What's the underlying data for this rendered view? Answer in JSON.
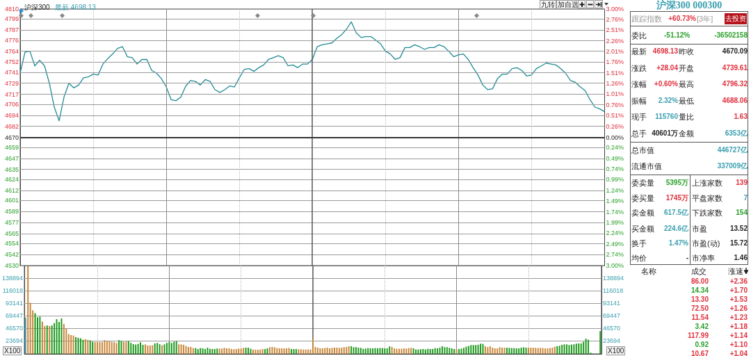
{
  "chart_data": [
    {
      "type": "line",
      "title": "沪深300",
      "subtitle": "最新 4698.13",
      "annotations": [
        "九转",
        "加自选"
      ],
      "categories": [
        null,
        null,
        null,
        null,
        null,
        null,
        null,
        null,
        null,
        null,
        null,
        null,
        null,
        null,
        null,
        null,
        null,
        null,
        null,
        null,
        null,
        null,
        null,
        null,
        null,
        null,
        null,
        null,
        null,
        null,
        null,
        null,
        null,
        null,
        null,
        null,
        null,
        null,
        null,
        null,
        null,
        null,
        null,
        null,
        null,
        null,
        null,
        null,
        null,
        null,
        null,
        null,
        null,
        null,
        null,
        null,
        null,
        null,
        null,
        null,
        null,
        null,
        null,
        null,
        null,
        null,
        null,
        null,
        null,
        null,
        null,
        null,
        null,
        null,
        null,
        null,
        null,
        null,
        null,
        null,
        null,
        null,
        null,
        null,
        null,
        null,
        null,
        null,
        null,
        null,
        null,
        null,
        null,
        null,
        null,
        null,
        null,
        null,
        null,
        null,
        null,
        null,
        null,
        null,
        null,
        null,
        null,
        null,
        null,
        null,
        null,
        null,
        null,
        null,
        null,
        null,
        null,
        null,
        null,
        null,
        null
      ],
      "values": [
        4740,
        4763,
        4764,
        4748,
        4754,
        4748,
        4729,
        4703,
        4688,
        4714,
        4729,
        4724,
        4727,
        4735,
        4736,
        4739,
        4738,
        4750,
        4756,
        4761,
        4767,
        4769,
        4758,
        4757,
        4750,
        4755,
        4755,
        4743,
        4740,
        4734,
        4725,
        4711,
        4710,
        4714,
        4726,
        4732,
        4731,
        4727,
        4733,
        4731,
        4722,
        4719,
        4722,
        4726,
        4725,
        4735,
        4744,
        4745,
        4742,
        4746,
        4749,
        4755,
        4757,
        4759,
        4757,
        4748,
        4749,
        4746,
        4750,
        4750,
        4755,
        4769,
        4771,
        4772,
        4773,
        4778,
        4782,
        4788,
        4796,
        4784,
        4779,
        4780,
        4780,
        4776,
        4772,
        4764,
        4761,
        4755,
        4757,
        4768,
        4768,
        4771,
        4769,
        4766,
        4768,
        4768,
        4771,
        4769,
        4764,
        4758,
        4760,
        4761,
        4755,
        4746,
        4738,
        4727,
        4722,
        4723,
        4734,
        4739,
        4739,
        4745,
        4746,
        4743,
        4737,
        4738,
        4745,
        4748,
        4751,
        4750,
        4749,
        4745,
        4740,
        4732,
        4730,
        4725,
        4721,
        4711,
        4703,
        4701,
        4698
      ],
      "color": "#1f8a94",
      "ylim": [
        4530,
        4810
      ],
      "yticks": [
        4530,
        4542,
        4554,
        4565,
        4577,
        4589,
        4601,
        4612,
        4624,
        4635,
        4647,
        4659,
        4670,
        4682,
        4694,
        4706,
        4717,
        4729,
        4741,
        4752,
        4764,
        4776,
        4787,
        4799,
        4810
      ],
      "y2lim": [
        -3,
        3
      ],
      "y2ticks": [
        {
          "value": -3,
          "label": "3.00%"
        },
        {
          "value": -2.74,
          "label": "2.74%"
        },
        {
          "value": -2.49,
          "label": "2.49%"
        },
        {
          "value": -2.24,
          "label": "2.24%"
        },
        {
          "value": -1.99,
          "label": "1.99%"
        },
        {
          "value": -1.74,
          "label": "1.74%"
        },
        {
          "value": -1.49,
          "label": "1.49%"
        },
        {
          "value": -1.24,
          "label": "1.24%"
        },
        {
          "value": -0.99,
          "label": "0.99%"
        },
        {
          "value": -0.74,
          "label": "0.74%"
        },
        {
          "value": -0.49,
          "label": "0.49%"
        },
        {
          "value": -0.24,
          "label": "0.24%"
        },
        {
          "value": 0,
          "label": "0.00%"
        },
        {
          "value": 0.26,
          "label": "0.26%"
        },
        {
          "value": 0.51,
          "label": "0.51%"
        },
        {
          "value": 0.76,
          "label": "0.76%"
        },
        {
          "value": 1.01,
          "label": "1.01%"
        },
        {
          "value": 1.26,
          "label": "1.26%"
        },
        {
          "value": 1.51,
          "label": "1.51%"
        },
        {
          "value": 1.76,
          "label": "1.76%"
        },
        {
          "value": 2.01,
          "label": "2.01%"
        },
        {
          "value": 2.26,
          "label": "2.26%"
        },
        {
          "value": 2.51,
          "label": "2.51%"
        },
        {
          "value": 2.76,
          "label": "2.76%"
        },
        {
          "value": 3,
          "label": "3.00%"
        }
      ],
      "ref_lines": [
        {
          "axis": "y",
          "value": 4670.09
        }
      ],
      "grid": true,
      "tick_labels": "y"
    },
    {
      "type": "bar",
      "categories": [
        null,
        null,
        null,
        null,
        null,
        null,
        null,
        null,
        null,
        null,
        null,
        null,
        null,
        null,
        null,
        null,
        null,
        null,
        null,
        null,
        null,
        null,
        null,
        null,
        null,
        null,
        null,
        null,
        null,
        null,
        null,
        null,
        null,
        null,
        null,
        null,
        null,
        null,
        null,
        null,
        null,
        null,
        null,
        null,
        null,
        null,
        null,
        null,
        null,
        null,
        null,
        null,
        null,
        null,
        null,
        null,
        null,
        null,
        null,
        null,
        null,
        null,
        null,
        null,
        null,
        null,
        null,
        null,
        null,
        null,
        null,
        null,
        null,
        null,
        null,
        null,
        null,
        null,
        null,
        null,
        null,
        null,
        null,
        null,
        null,
        null,
        null,
        null,
        null,
        null,
        null,
        null,
        null,
        null,
        null,
        null,
        null,
        null,
        null,
        null,
        null,
        null,
        null,
        null,
        null,
        null,
        null,
        null,
        null,
        null,
        null,
        null,
        null,
        null,
        null,
        null,
        null,
        null,
        null,
        null,
        null,
        null,
        null,
        null,
        null,
        null,
        null,
        null,
        null,
        null,
        null,
        null,
        null,
        null,
        null,
        null,
        null,
        null,
        null,
        null,
        null,
        null,
        null,
        null,
        null,
        null,
        null,
        null,
        null,
        null,
        null,
        null,
        null,
        null,
        null,
        null,
        null,
        null,
        null,
        null,
        null,
        null,
        null,
        null,
        null,
        null,
        null,
        null,
        null,
        null,
        null,
        null,
        null,
        null,
        null,
        null,
        null,
        null,
        null,
        null,
        null,
        null,
        null,
        null,
        null,
        null,
        null,
        null,
        null,
        null,
        null,
        null,
        null,
        null,
        null,
        null,
        null,
        null,
        null,
        null,
        null,
        null,
        null,
        null,
        null,
        null,
        null,
        null,
        null,
        null,
        null,
        null,
        null,
        null,
        null,
        null,
        null,
        null,
        null,
        null,
        null,
        null,
        null,
        null,
        null,
        null,
        null,
        null,
        null,
        null,
        null,
        null,
        null,
        null,
        null,
        null,
        null,
        null,
        null,
        null,
        null
      ],
      "values": [
        66200,
        161000,
        93500,
        79800,
        74700,
        67000,
        68300,
        59400,
        51200,
        52100,
        51200,
        52100,
        56400,
        63600,
        58500,
        64900,
        55100,
        46500,
        36300,
        34600,
        33700,
        30700,
        29500,
        28600,
        26000,
        26900,
        25600,
        24800,
        22200,
        21800,
        22200,
        21800,
        21800,
        25200,
        23500,
        23100,
        22200,
        21800,
        20100,
        25200,
        23500,
        22200,
        22600,
        23500,
        20100,
        17900,
        17100,
        18400,
        21400,
        16700,
        17500,
        15400,
        15400,
        15800,
        19200,
        20100,
        17900,
        15800,
        17500,
        20100,
        21800,
        20100,
        22200,
        23500,
        17500,
        17500,
        16700,
        14500,
        12800,
        12800,
        10700,
        10700,
        9000,
        10700,
        10200,
        9000,
        11500,
        9400,
        9000,
        9000,
        9800,
        9800,
        9800,
        11100,
        10200,
        10200,
        9000,
        8500,
        9000,
        9800,
        9800,
        11100,
        11500,
        11500,
        9400,
        8100,
        7700,
        7700,
        8100,
        9000,
        9000,
        10200,
        12400,
        12800,
        12000,
        10700,
        10200,
        10200,
        10200,
        10200,
        11100,
        9000,
        9000,
        9000,
        8500,
        8500,
        8100,
        8100,
        8100,
        8100,
        27800,
        12800,
        11500,
        10200,
        10200,
        10700,
        11500,
        10200,
        11100,
        11500,
        11500,
        11100,
        11500,
        12400,
        12800,
        14100,
        14100,
        12400,
        12400,
        11500,
        11100,
        9400,
        9800,
        10700,
        10200,
        10200,
        10700,
        10200,
        10700,
        10700,
        10200,
        10200,
        13700,
        12800,
        10200,
        9400,
        9400,
        9400,
        10200,
        9800,
        10700,
        11100,
        10200,
        8100,
        8100,
        8500,
        9000,
        8100,
        9400,
        9000,
        9000,
        10700,
        10200,
        11500,
        14100,
        12400,
        12400,
        11100,
        10200,
        9000,
        8500,
        9000,
        9800,
        11100,
        13200,
        14500,
        16200,
        16200,
        16200,
        16700,
        18800,
        18400,
        14100,
        12400,
        14100,
        11500,
        10200,
        10200,
        12400,
        11500,
        11500,
        11500,
        11100,
        10700,
        10700,
        10200,
        10200,
        11500,
        12000,
        11500,
        11500,
        11500,
        11500,
        11100,
        10700,
        11100,
        10700,
        10200,
        10200,
        10700,
        11500,
        13200,
        14100,
        14900,
        16700,
        17500,
        17500,
        16200,
        17100,
        17500,
        18800,
        19200,
        19200,
        22200,
        27800,
        26000,
        2100,
        null,
        null,
        null,
        41800
      ],
      "colors": [
        "#4aa3b5",
        "#c8873a",
        "#c8873a",
        "#c8873a",
        "#1e9a1e",
        "#1e9a1e",
        "#1e9a1e",
        "#c8873a",
        "#c8873a",
        "#1e9a1e",
        "#c8873a",
        "#1e9a1e",
        "#1e9a1e",
        "#1e9a1e",
        "#1e9a1e",
        "#1e9a1e",
        "#c8873a",
        "#c8873a",
        "#c8873a",
        "#c8873a",
        "#c8873a",
        "#1e9a1e",
        "#1e9a1e",
        "#1e9a1e",
        "#1e9a1e",
        "#c8873a",
        "#c8873a",
        "#1e9a1e",
        "#1e9a1e",
        "#c8873a",
        "#c8873a",
        "#c8873a",
        "#c8873a",
        "#c8873a",
        "#c8873a",
        "#c8873a",
        "#c8873a",
        "#c8873a",
        "#c8873a",
        "#1e9a1e",
        "#1e9a1e",
        "#c8873a",
        "#c8873a",
        "#1e9a1e",
        "#1e9a1e",
        "#1e9a1e",
        "#1e9a1e",
        "#1e9a1e",
        "#1e9a1e",
        "#1e9a1e",
        "#c8873a",
        "#c8873a",
        "#c8873a",
        "#c8873a",
        "#1e9a1e",
        "#1e9a1e",
        "#1e9a1e",
        "#c8873a",
        "#1e9a1e",
        "#1e9a1e",
        "#1e9a1e",
        "#1e9a1e",
        "#1e9a1e",
        "#1e9a1e",
        "#c8873a",
        "#c8873a",
        "#c8873a",
        "#c8873a",
        "#c8873a",
        "#c8873a",
        "#c8873a",
        "#1e9a1e",
        "#1e9a1e",
        "#1e9a1e",
        "#1e9a1e",
        "#1e9a1e",
        "#1e9a1e",
        "#1e9a1e",
        "#1e9a1e",
        "#1e9a1e",
        "#1e9a1e",
        "#c8873a",
        "#c8873a",
        "#c8873a",
        "#c8873a",
        "#c8873a",
        "#c8873a",
        "#c8873a",
        "#c8873a",
        "#c8873a",
        "#c8873a",
        "#c8873a",
        "#1e9a1e",
        "#1e9a1e",
        "#1e9a1e",
        "#c8873a",
        "#c8873a",
        "#c8873a",
        "#c8873a",
        "#c8873a",
        "#1e9a1e",
        "#1e9a1e",
        "#c8873a",
        "#c8873a",
        "#c8873a",
        "#c8873a",
        "#c8873a",
        "#c8873a",
        "#c8873a",
        "#c8873a",
        "#c8873a",
        "#1e9a1e",
        "#1e9a1e",
        "#1e9a1e",
        "#c8873a",
        "#c8873a",
        "#c8873a",
        "#c8873a",
        "#c8873a",
        "#c8873a",
        "#c8873a",
        "#c8873a",
        "#c8873a",
        "#c8873a",
        "#c8873a",
        "#c8873a",
        "#c8873a",
        "#c8873a",
        "#c8873a",
        "#c8873a",
        "#c8873a",
        "#c8873a",
        "#c8873a",
        "#c8873a",
        "#c8873a",
        "#c8873a",
        "#1e9a1e",
        "#1e9a1e",
        "#1e9a1e",
        "#1e9a1e",
        "#1e9a1e",
        "#1e9a1e",
        "#1e9a1e",
        "#1e9a1e",
        "#1e9a1e",
        "#1e9a1e",
        "#1e9a1e",
        "#1e9a1e",
        "#1e9a1e",
        "#1e9a1e",
        "#1e9a1e",
        "#1e9a1e",
        "#1e9a1e",
        "#c8873a",
        "#c8873a",
        "#c8873a",
        "#c8873a",
        "#c8873a",
        "#c8873a",
        "#c8873a",
        "#c8873a",
        "#c8873a",
        "#1e9a1e",
        "#1e9a1e",
        "#1e9a1e",
        "#1e9a1e",
        "#1e9a1e",
        "#1e9a1e",
        "#1e9a1e",
        "#1e9a1e",
        "#1e9a1e",
        "#1e9a1e",
        "#1e9a1e",
        "#1e9a1e",
        "#1e9a1e",
        "#1e9a1e",
        "#1e9a1e",
        "#1e9a1e",
        "#1e9a1e",
        "#1e9a1e",
        "#c8873a",
        "#1e9a1e",
        "#1e9a1e",
        "#1e9a1e",
        "#1e9a1e",
        "#1e9a1e",
        "#1e9a1e",
        "#1e9a1e",
        "#1e9a1e",
        "#1e9a1e",
        "#1e9a1e",
        "#1e9a1e",
        "#c8873a",
        "#c8873a",
        "#c8873a",
        "#c8873a",
        "#c8873a",
        "#c8873a",
        "#c8873a",
        "#c8873a",
        "#c8873a",
        "#1e9a1e",
        "#1e9a1e",
        "#1e9a1e",
        "#1e9a1e",
        "#1e9a1e",
        "#1e9a1e",
        "#1e9a1e",
        "#1e9a1e",
        "#1e9a1e",
        "#c8873a",
        "#c8873a",
        "#c8873a",
        "#c8873a",
        "#c8873a",
        "#c8873a",
        "#c8873a",
        "#c8873a",
        "#c8873a",
        "#c8873a",
        "#c8873a",
        "#c8873a",
        "#1e9a1e",
        "#1e9a1e",
        "#1e9a1e",
        "#1e9a1e",
        "#1e9a1e",
        "#1e9a1e",
        "#1e9a1e",
        "#1e9a1e",
        "#1e9a1e",
        "#1e9a1e",
        "#1e9a1e",
        "#1e9a1e",
        "#1e9a1e",
        "#1e9a1e",
        "#1e9a1e",
        "#1e9a1e",
        "#1e9a1e",
        "#1e9a1e",
        "#1e9a1e"
      ],
      "ylim": [
        0,
        161770
      ],
      "yticks": [
        23694,
        46570,
        69447,
        93141,
        116018,
        138894
      ],
      "y2lim": [
        0,
        161770
      ],
      "y2ticks": [
        23694,
        46570,
        69447,
        93141,
        116018,
        138894
      ],
      "annotations": [
        "X100",
        "X100"
      ],
      "grid": true,
      "tick_labels": "y"
    },
    {
      "type": "other",
      "title": "沪深300 000300",
      "annotations": [
        "跟踪指数",
        "+60.73%",
        "[3年]",
        "去投资",
        "委比",
        "-51.12%",
        "-36502158",
        "最新",
        "4698.13",
        "昨收",
        "4670.09",
        "涨跌",
        "+28.04",
        "开盘",
        "4739.61",
        "涨幅",
        "+0.60%",
        "最高",
        "4796.32",
        "振幅",
        "2.32%",
        "最低",
        "4688.06",
        "现手",
        "115760",
        "量比",
        "1.63",
        "总手",
        "40601万",
        "金额",
        "6353亿",
        "总市值",
        "446727亿",
        "流通市值",
        "337009亿",
        "委卖量",
        "5395万",
        "上涨家数",
        "139",
        "委买量",
        "1745万",
        "平盘家数",
        "7",
        "卖金额",
        "617.5亿",
        "下跌家数",
        "154",
        "买金额",
        "224.6亿",
        "市盈",
        "13.52",
        "换手",
        "1.47%",
        "市盈(动)",
        "15.72",
        "均价",
        "-",
        "市净率",
        "1.46",
        "名称",
        "成交",
        "涨速",
        "86.00",
        "+2.36",
        "14.34",
        "+1.70",
        "13.30",
        "+1.53",
        "72.50",
        "+1.26",
        "11.54",
        "+1.23",
        "3.42",
        "+1.18",
        "117.99",
        "+1.14",
        "0.92",
        "+1.10",
        "10.67",
        "+1.04"
      ]
    }
  ]
}
